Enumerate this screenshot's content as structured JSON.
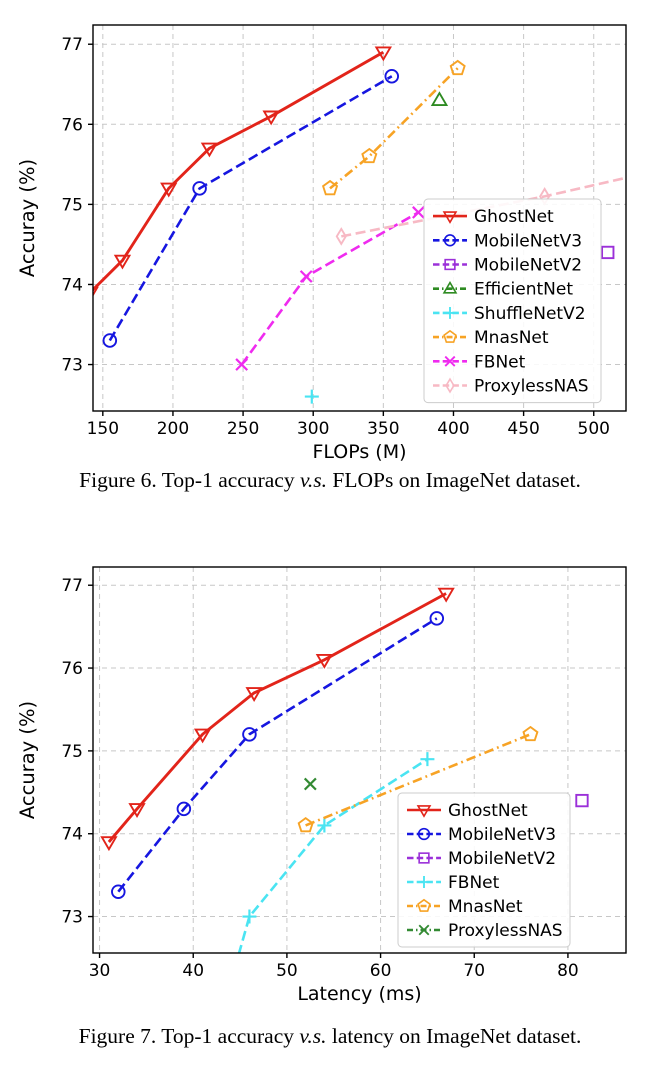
{
  "page": {
    "background": "#ffffff"
  },
  "captions": {
    "fig6": {
      "before": "Figure 6. Top-1 accuracy",
      "vs": "v.s.",
      "after": "FLOPs on ImageNet dataset."
    },
    "fig7": {
      "before": "Figure 7. Top-1 accuracy",
      "vs": "v.s.",
      "after": "latency on ImageNet dataset."
    }
  },
  "chart_data": [
    {
      "type": "line",
      "title": "",
      "xlabel": "FLOPs (M)",
      "ylabel": "Accuray (%)",
      "xlim": [
        143,
        523
      ],
      "ylim": [
        72.42,
        77.24
      ],
      "xticks": [
        150,
        200,
        250,
        300,
        350,
        400,
        450,
        500
      ],
      "yticks": [
        73,
        74,
        75,
        76,
        77
      ],
      "grid": true,
      "legend_position": "center right",
      "series": [
        {
          "name": "GhostNet",
          "color": "#e2241a",
          "linestyle": "solid",
          "marker": "triangle-down",
          "x": [
            141,
            164,
            197,
            226,
            270,
            350
          ],
          "y": [
            73.9,
            74.3,
            75.2,
            75.7,
            76.1,
            76.9
          ]
        },
        {
          "name": "MobileNetV3",
          "color": "#1616e0",
          "linestyle": "dashed",
          "marker": "circle",
          "x": [
            155,
            219,
            356
          ],
          "y": [
            73.3,
            75.2,
            76.6
          ]
        },
        {
          "name": "MobileNetV2",
          "color": "#9b30d9",
          "linestyle": "dashed",
          "marker": "square",
          "x": [
            510
          ],
          "y": [
            74.4
          ]
        },
        {
          "name": "EfficientNet",
          "color": "#2e8b22",
          "linestyle": "dashdot",
          "marker": "triangle-up",
          "x": [
            390
          ],
          "y": [
            76.3
          ]
        },
        {
          "name": "ShuffleNetV2",
          "color": "#4ae4f2",
          "linestyle": "dashed",
          "marker": "plus",
          "x": [
            299
          ],
          "y": [
            72.6
          ]
        },
        {
          "name": "MnasNet",
          "color": "#f7a325",
          "linestyle": "dashdot",
          "marker": "pentagon",
          "x": [
            312,
            340,
            403
          ],
          "y": [
            75.2,
            75.6,
            76.7
          ]
        },
        {
          "name": "FBNet",
          "color": "#ef2bef",
          "linestyle": "dashed",
          "marker": "x",
          "x": [
            249,
            295,
            375
          ],
          "y": [
            73.0,
            74.1,
            74.9
          ]
        },
        {
          "name": "ProxylessNAS",
          "color": "#f7b9c4",
          "linestyle": "dashed",
          "marker": "thin-diamond",
          "x": [
            320,
            465
          ],
          "y": [
            74.6,
            75.1
          ]
        }
      ]
    },
    {
      "type": "line",
      "title": "",
      "xlabel": "Latency (ms)",
      "ylabel": "Accuray (%)",
      "xlim": [
        29.3,
        86.2
      ],
      "ylim": [
        72.56,
        77.22
      ],
      "xticks": [
        30,
        40,
        50,
        60,
        70,
        80
      ],
      "yticks": [
        73,
        74,
        75,
        76,
        77
      ],
      "grid": true,
      "legend_position": "lower right",
      "series": [
        {
          "name": "GhostNet",
          "color": "#e2241a",
          "linestyle": "solid",
          "marker": "triangle-down",
          "x": [
            31,
            34,
            41,
            46.5,
            54,
            67
          ],
          "y": [
            73.9,
            74.3,
            75.2,
            75.7,
            76.1,
            76.9
          ]
        },
        {
          "name": "MobileNetV3",
          "color": "#1616e0",
          "linestyle": "dashed",
          "marker": "circle",
          "x": [
            32,
            39,
            46,
            66
          ],
          "y": [
            73.3,
            74.3,
            75.2,
            76.6
          ]
        },
        {
          "name": "MobileNetV2",
          "color": "#9b30d9",
          "linestyle": "dashed",
          "marker": "square",
          "x": [
            81.5
          ],
          "y": [
            74.4
          ]
        },
        {
          "name": "FBNet",
          "color": "#4ae4f2",
          "linestyle": "dashed",
          "marker": "plus",
          "x": [
            46,
            54,
            65
          ],
          "y": [
            73.0,
            74.1,
            74.9
          ]
        },
        {
          "name": "MnasNet",
          "color": "#f7a325",
          "linestyle": "dashdot",
          "marker": "pentagon",
          "x": [
            52,
            76
          ],
          "y": [
            74.1,
            75.2
          ]
        },
        {
          "name": "ProxylessNAS",
          "color": "#338a33",
          "linestyle": "dashdot",
          "marker": "x",
          "x": [
            52.5
          ],
          "y": [
            74.6
          ]
        }
      ]
    }
  ]
}
